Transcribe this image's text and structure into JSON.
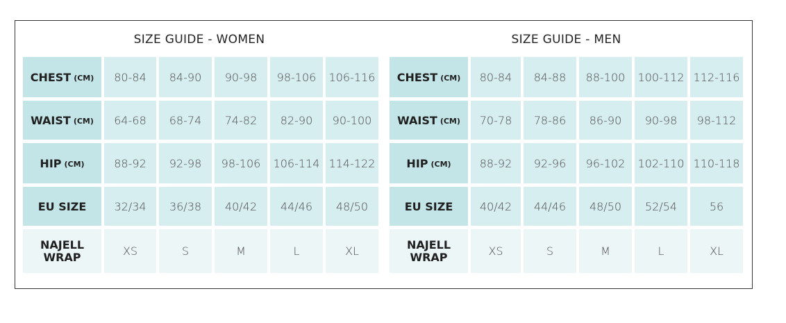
{
  "women": {
    "title": "SIZE GUIDE - WOMEN",
    "rows": [
      {
        "label": "CHEST",
        "unit": "(CM)",
        "values": [
          "80-84",
          "84-90",
          "90-98",
          "98-106",
          "106-116"
        ]
      },
      {
        "label": "WAIST",
        "unit": "(CM)",
        "values": [
          "64-68",
          "68-74",
          "74-82",
          "82-90",
          "90-100"
        ]
      },
      {
        "label": "HIP",
        "unit": "(CM)",
        "values": [
          "88-92",
          "92-98",
          "98-106",
          "106-114",
          "114-122"
        ]
      },
      {
        "label": "EU SIZE",
        "unit": "",
        "values": [
          "32/34",
          "36/38",
          "40/42",
          "44/46",
          "48/50"
        ]
      },
      {
        "label_line1": "NAJELL",
        "label_line2": "WRAP",
        "values": [
          "XS",
          "S",
          "M",
          "L",
          "XL"
        ]
      }
    ]
  },
  "men": {
    "title": "SIZE GUIDE - MEN",
    "rows": [
      {
        "label": "CHEST",
        "unit": "(CM)",
        "values": [
          "80-84",
          "84-88",
          "88-100",
          "100-112",
          "112-116"
        ]
      },
      {
        "label": "WAIST",
        "unit": "(CM)",
        "values": [
          "70-78",
          "78-86",
          "86-90",
          "90-98",
          "98-112"
        ]
      },
      {
        "label": "HIP",
        "unit": "(CM)",
        "values": [
          "88-92",
          "92-96",
          "96-102",
          "102-110",
          "110-118"
        ]
      },
      {
        "label": "EU SIZE",
        "unit": "",
        "values": [
          "40/42",
          "44/46",
          "48/50",
          "52/54",
          "56"
        ]
      },
      {
        "label_line1": "NAJELL",
        "label_line2": "WRAP",
        "values": [
          "XS",
          "S",
          "M",
          "L",
          "XL"
        ]
      }
    ]
  }
}
